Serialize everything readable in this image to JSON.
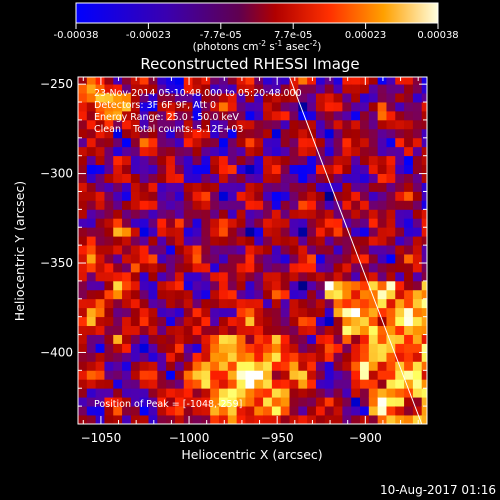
{
  "colorbar": {
    "ticks": [
      "-0.00038",
      "-0.00023",
      "-7.7e-05",
      "7.7e-05",
      "0.00023",
      "0.00038"
    ],
    "units_prefix": "(photons cm",
    "units_exp1": "-2",
    "units_mid": " s",
    "units_exp2": "-1",
    "units_mid2": " asec",
    "units_exp3": "-2",
    "units_suffix": ")"
  },
  "annotations": {
    "time": "23-Nov-2014 05:10:48.000 to 05:20:48.000",
    "detectors": "Detectors: 3F 6F 9F, Att 0",
    "energy": "Energy Range: 25.0 - 50.0 keV",
    "clean": "Clean    Total counts: 5.12E+03",
    "peak": "Position of Peak = [-1048,-259]"
  },
  "footer": {
    "timestamp": "10-Aug-2017 01:16"
  },
  "chart_data": {
    "type": "heatmap",
    "title": "Reconstructed RHESSI Image",
    "xlabel": "Heliocentric X (arcsec)",
    "ylabel": "Heliocentric Y (arcsec)",
    "xlim": [
      -1063,
      -865
    ],
    "ylim": [
      -440,
      -246
    ],
    "x_ticks": [
      -1050,
      -1000,
      -950,
      -900
    ],
    "y_ticks": [
      -250,
      -300,
      -350,
      -400
    ],
    "x_tick_labels": [
      "−1050",
      "−1000",
      "−950",
      "−900"
    ],
    "y_tick_labels": [
      "−250",
      "−300",
      "−350",
      "−400"
    ],
    "value_range": [
      -0.00038,
      0.00038
    ],
    "colormap": [
      "#000000",
      "#0000ff",
      "#5500aa",
      "#a00000",
      "#ff2000",
      "#ff9000",
      "#ffff60",
      "#ffffff"
    ],
    "limb_line": {
      "x": [
        -943,
        -868
      ],
      "y": [
        -246,
        -440
      ]
    },
    "peak_position": [
      -1048,
      -259
    ]
  }
}
